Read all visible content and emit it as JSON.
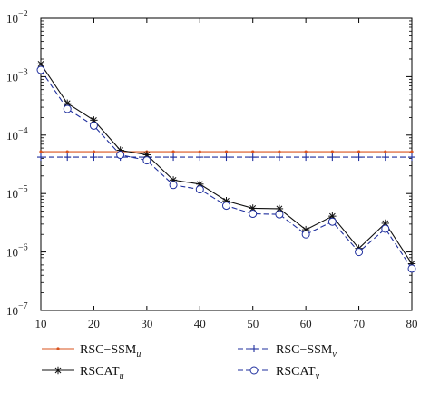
{
  "chart_data": {
    "type": "line",
    "title": "",
    "xlabel": "",
    "ylabel": "",
    "yscale": "log",
    "xlim": [
      10,
      80
    ],
    "ylim": [
      1e-07,
      0.01
    ],
    "grid": false,
    "legend_position": "bottom",
    "x_ticks": [
      10,
      20,
      30,
      40,
      50,
      60,
      70,
      80
    ],
    "x_tick_labels": [
      "10",
      "20",
      "30",
      "40",
      "50",
      "60",
      "70",
      "80"
    ],
    "y_ticks": [
      1e-07,
      1e-06,
      1e-05,
      0.0001,
      0.001,
      0.01
    ],
    "y_tick_labels": [
      {
        "base": "10",
        "exp": "−7"
      },
      {
        "base": "10",
        "exp": "−6"
      },
      {
        "base": "10",
        "exp": "−5"
      },
      {
        "base": "10",
        "exp": "−4"
      },
      {
        "base": "10",
        "exp": "−3"
      },
      {
        "base": "10",
        "exp": "−2"
      }
    ],
    "x": [
      10,
      15,
      20,
      25,
      30,
      35,
      40,
      45,
      50,
      55,
      60,
      65,
      70,
      75,
      80
    ],
    "series": [
      {
        "name": "RSC−SSM",
        "name_sub": "u",
        "color": "#d9531e",
        "dash": "solid",
        "marker": "dot",
        "values": [
          5.2e-05,
          5.2e-05,
          5.2e-05,
          5.2e-05,
          5.2e-05,
          5.2e-05,
          5.2e-05,
          5.2e-05,
          5.2e-05,
          5.2e-05,
          5.2e-05,
          5.2e-05,
          5.2e-05,
          5.2e-05,
          5.2e-05
        ]
      },
      {
        "name": "RSC−SSM",
        "name_sub": "v",
        "color": "#1f2f9e",
        "dash": "dashed",
        "marker": "plus",
        "values": [
          4.2e-05,
          4.2e-05,
          4.2e-05,
          4.2e-05,
          4.2e-05,
          4.2e-05,
          4.2e-05,
          4.2e-05,
          4.2e-05,
          4.2e-05,
          4.2e-05,
          4.2e-05,
          4.2e-05,
          4.2e-05,
          4.2e-05
        ]
      },
      {
        "name": "RSCAT",
        "name_sub": "u",
        "color": "#111111",
        "dash": "solid",
        "marker": "star",
        "values": [
          0.00165,
          0.00035,
          0.00018,
          5.5e-05,
          4.6e-05,
          1.7e-05,
          1.45e-05,
          7.5e-06,
          5.6e-06,
          5.5e-06,
          2.4e-06,
          4.1e-06,
          1.15e-06,
          3.1e-06,
          6.3e-07
        ]
      },
      {
        "name": "RSCAT",
        "name_sub": "v",
        "color": "#1f2f9e",
        "dash": "dashed",
        "marker": "circle",
        "values": [
          0.0013,
          0.00028,
          0.000145,
          4.6e-05,
          3.7e-05,
          1.4e-05,
          1.18e-05,
          6.2e-06,
          4.5e-06,
          4.4e-06,
          2e-06,
          3.3e-06,
          1e-06,
          2.5e-06,
          5.2e-07
        ]
      }
    ]
  }
}
